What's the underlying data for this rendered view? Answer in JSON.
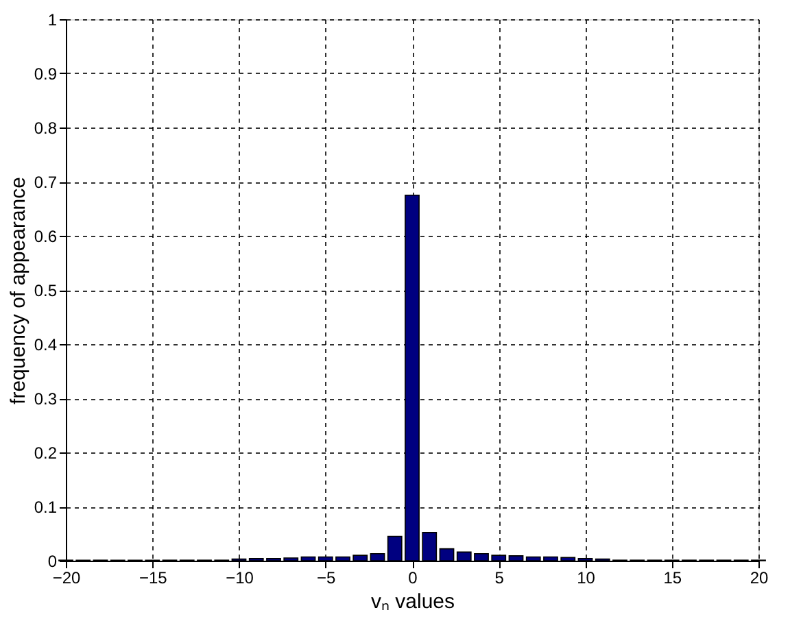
{
  "chart_data": {
    "type": "bar",
    "xlabel": "vₙ values",
    "ylabel": "frequency of appearance",
    "x": [
      -20,
      -19,
      -18,
      -17,
      -16,
      -15,
      -14,
      -13,
      -12,
      -11,
      -10,
      -9,
      -8,
      -7,
      -6,
      -5,
      -4,
      -3,
      -2,
      -1,
      0,
      1,
      2,
      3,
      4,
      5,
      6,
      7,
      8,
      9,
      10,
      11,
      12,
      13,
      14,
      15,
      16,
      17,
      18,
      19,
      20
    ],
    "values": [
      0.001,
      0.001,
      0.001,
      0.001,
      0.001,
      0.001,
      0.001,
      0.001,
      0.001,
      0.001,
      0.003,
      0.004,
      0.004,
      0.005,
      0.007,
      0.007,
      0.007,
      0.01,
      0.013,
      0.045,
      0.675,
      0.052,
      0.022,
      0.016,
      0.013,
      0.01,
      0.009,
      0.007,
      0.007,
      0.006,
      0.004,
      0.003,
      0.001,
      0.001,
      0.001,
      0.001,
      0.001,
      0.001,
      0.001,
      0.001,
      0.001
    ],
    "color": "#000080",
    "xlim": [
      -20,
      20
    ],
    "xticks": [
      -20,
      -15,
      -10,
      -5,
      0,
      5,
      10,
      15,
      20
    ],
    "ylim": [
      0,
      1
    ],
    "yticks": [
      0,
      0.1,
      0.2,
      0.3,
      0.4,
      0.5,
      0.6,
      0.7,
      0.8,
      0.9,
      1
    ],
    "grid": true
  }
}
